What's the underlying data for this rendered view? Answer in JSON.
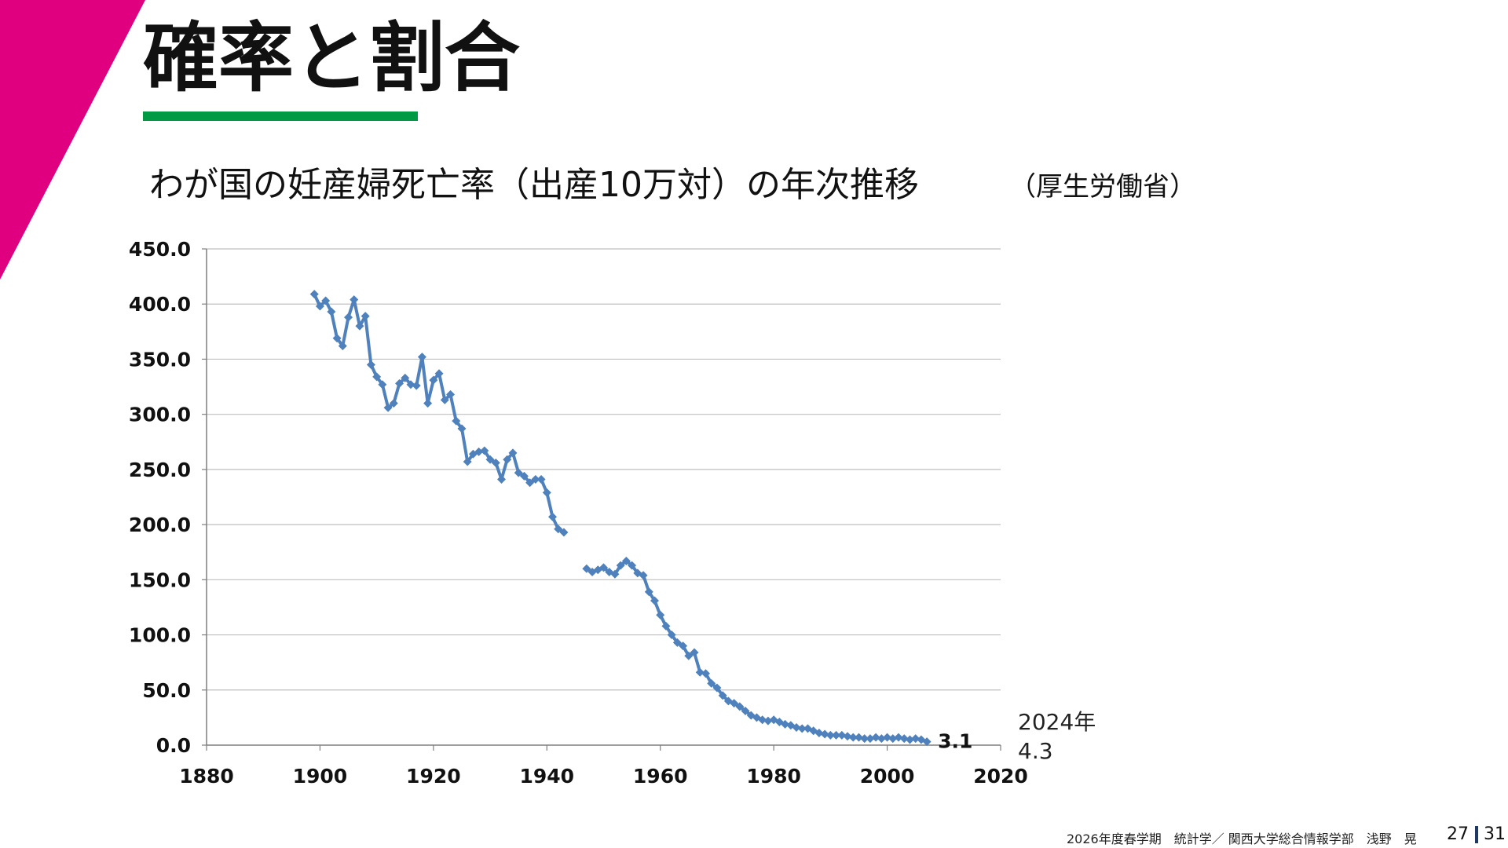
{
  "slide": {
    "title": "確率と割合",
    "footer": "2026年度春学期　統計学／ 関西大学総合情報学部　浅野　晃",
    "page_current": "27",
    "page_total": "31",
    "accent_color": "#e0007f",
    "underline_color": "#009944"
  },
  "chart_data": {
    "type": "line",
    "title": "わが国の妊産婦死亡率（出産10万対）の年次推移",
    "source": "（厚生労働省）",
    "xlabel": "",
    "ylabel": "",
    "xlim": [
      1880,
      2020
    ],
    "ylim": [
      0,
      450
    ],
    "x_ticks": [
      "1880",
      "1900",
      "1920",
      "1940",
      "1960",
      "1980",
      "2000",
      "2020"
    ],
    "y_ticks": [
      "0.0",
      "50.0",
      "100.0",
      "150.0",
      "200.0",
      "250.0",
      "300.0",
      "350.0",
      "400.0",
      "450.0"
    ],
    "grid": true,
    "legend": "none",
    "series_color": "#4f81bd",
    "series": [
      {
        "segments": [
          [
            [
              1899,
              409
            ],
            [
              1900,
              398
            ],
            [
              1901,
              403
            ],
            [
              1902,
              393
            ],
            [
              1903,
              369
            ],
            [
              1904,
              362
            ],
            [
              1905,
              388
            ],
            [
              1906,
              404
            ],
            [
              1907,
              380
            ],
            [
              1908,
              389
            ],
            [
              1909,
              345
            ],
            [
              1910,
              334
            ],
            [
              1911,
              327
            ],
            [
              1912,
              306
            ],
            [
              1913,
              310
            ],
            [
              1914,
              328
            ],
            [
              1915,
              333
            ],
            [
              1916,
              327
            ],
            [
              1917,
              326
            ],
            [
              1918,
              352
            ],
            [
              1919,
              310
            ],
            [
              1920,
              331
            ],
            [
              1921,
              337
            ],
            [
              1922,
              313
            ],
            [
              1923,
              318
            ],
            [
              1924,
              294
            ],
            [
              1925,
              287
            ],
            [
              1926,
              257
            ],
            [
              1927,
              264
            ],
            [
              1928,
              266
            ],
            [
              1929,
              267
            ],
            [
              1930,
              259
            ],
            [
              1931,
              256
            ],
            [
              1932,
              241
            ],
            [
              1933,
              259
            ],
            [
              1934,
              265
            ],
            [
              1935,
              247
            ],
            [
              1936,
              244
            ],
            [
              1937,
              238
            ],
            [
              1938,
              241
            ],
            [
              1939,
              241
            ],
            [
              1940,
              229
            ],
            [
              1941,
              207
            ],
            [
              1942,
              196
            ],
            [
              1943,
              193
            ]
          ],
          [
            [
              1947,
              160
            ],
            [
              1948,
              157
            ],
            [
              1949,
              159
            ],
            [
              1950,
              161
            ],
            [
              1951,
              157
            ],
            [
              1952,
              155
            ],
            [
              1953,
              163
            ],
            [
              1954,
              167
            ],
            [
              1955,
              163
            ],
            [
              1956,
              156
            ],
            [
              1957,
              154
            ],
            [
              1958,
              139
            ],
            [
              1959,
              131
            ],
            [
              1960,
              118
            ],
            [
              1961,
              108
            ],
            [
              1962,
              100
            ],
            [
              1963,
              93
            ],
            [
              1964,
              90
            ],
            [
              1965,
              81
            ],
            [
              1966,
              84
            ],
            [
              1967,
              66
            ],
            [
              1968,
              65
            ],
            [
              1969,
              56
            ],
            [
              1970,
              52
            ],
            [
              1971,
              45
            ],
            [
              1972,
              40
            ],
            [
              1973,
              38
            ],
            [
              1974,
              35
            ],
            [
              1975,
              31
            ],
            [
              1976,
              27
            ],
            [
              1977,
              25
            ],
            [
              1978,
              23
            ],
            [
              1979,
              22
            ],
            [
              1980,
              23
            ],
            [
              1981,
              21
            ],
            [
              1982,
              19
            ],
            [
              1983,
              18
            ],
            [
              1984,
              16
            ],
            [
              1985,
              15
            ],
            [
              1986,
              15
            ],
            [
              1987,
              13
            ],
            [
              1988,
              11
            ],
            [
              1989,
              10
            ],
            [
              1990,
              9
            ],
            [
              1991,
              9
            ],
            [
              1992,
              9
            ],
            [
              1993,
              8
            ],
            [
              1994,
              7
            ],
            [
              1995,
              7
            ],
            [
              1996,
              6
            ],
            [
              1997,
              6
            ],
            [
              1998,
              7
            ],
            [
              1999,
              6
            ],
            [
              2000,
              7
            ],
            [
              2001,
              6
            ],
            [
              2002,
              7
            ],
            [
              2003,
              6
            ],
            [
              2004,
              5
            ],
            [
              2005,
              6
            ],
            [
              2006,
              5
            ],
            [
              2007,
              3.1
            ]
          ]
        ]
      }
    ],
    "end_label": "3.1",
    "annotation_year": "2024年",
    "annotation_value": "4.3"
  }
}
